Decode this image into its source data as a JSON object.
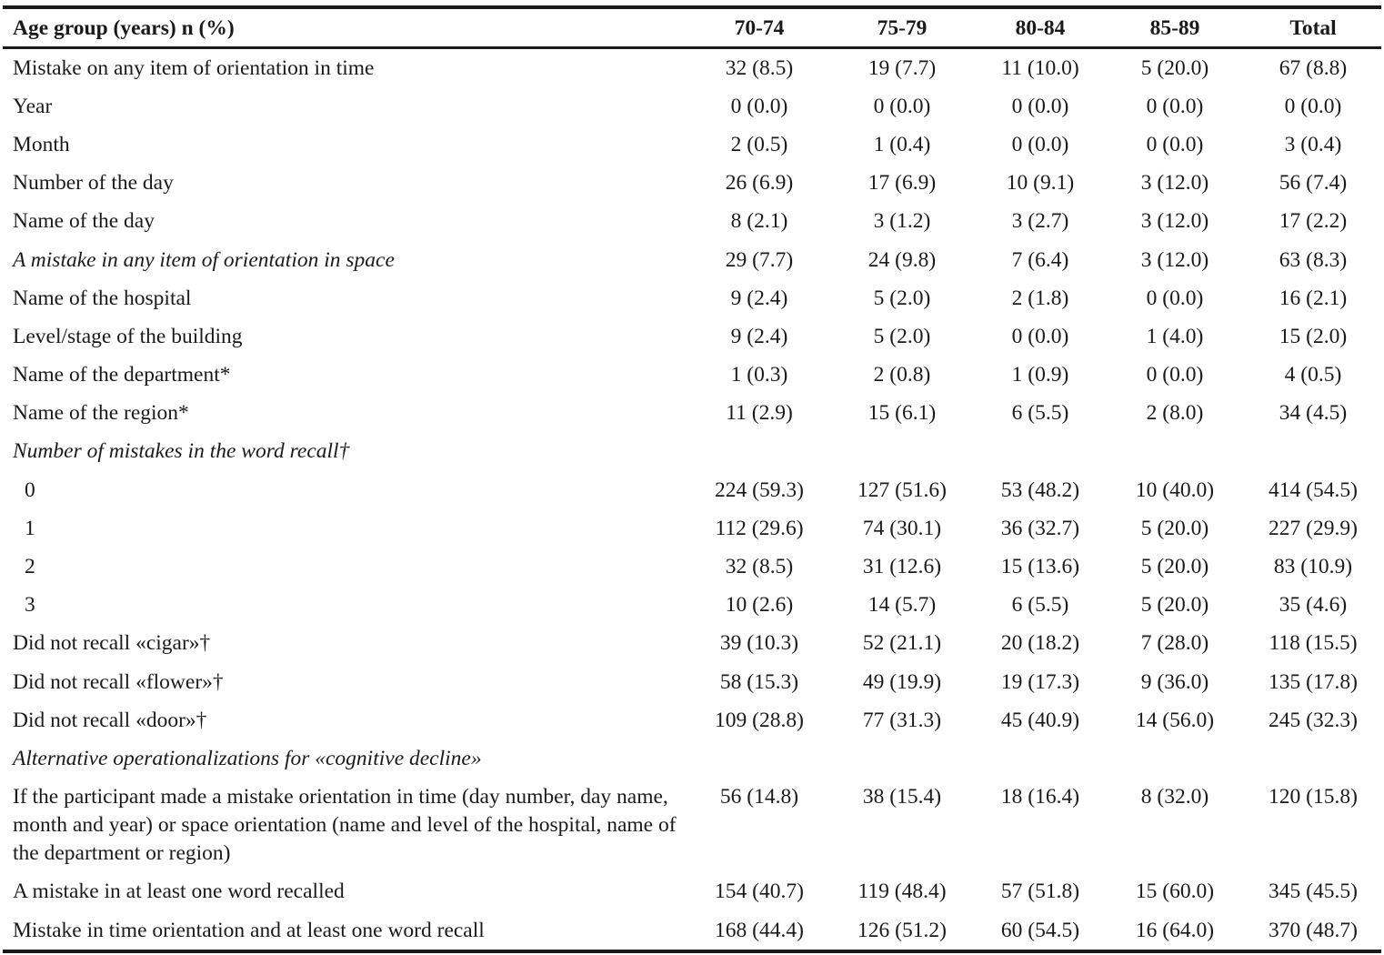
{
  "table": {
    "header": [
      "Age group (years) n (%)",
      "70-74",
      "75-79",
      "80-84",
      "85-89",
      "Total"
    ],
    "rows": [
      {
        "label": "Mistake on any item of orientation in time",
        "values": [
          "32 (8.5)",
          "19 (7.7)",
          "11 (10.0)",
          "5 (20.0)",
          "67 (8.8)"
        ]
      },
      {
        "label": "Year",
        "values": [
          "0 (0.0)",
          "0 (0.0)",
          "0 (0.0)",
          "0 (0.0)",
          "0 (0.0)"
        ]
      },
      {
        "label": "Month",
        "values": [
          "2 (0.5)",
          "1 (0.4)",
          "0 (0.0)",
          "0 (0.0)",
          "3 (0.4)"
        ]
      },
      {
        "label": "Number of the day",
        "values": [
          "26 (6.9)",
          "17 (6.9)",
          "10 (9.1)",
          "3 (12.0)",
          "56 (7.4)"
        ]
      },
      {
        "label": "Name of the day",
        "values": [
          "8 (2.1)",
          "3 (1.2)",
          "3 (2.7)",
          "3 (12.0)",
          "17 (2.2)"
        ]
      },
      {
        "label": "A mistake in any item of orientation in space",
        "values": [
          "29 (7.7)",
          "24 (9.8)",
          "7 (6.4)",
          "3 (12.0)",
          "63 (8.3)"
        ]
      },
      {
        "label": "Name of the hospital",
        "values": [
          "9 (2.4)",
          "5 (2.0)",
          "2 (1.8)",
          "0 (0.0)",
          "16 (2.1)"
        ]
      },
      {
        "label": "Level/stage of the building",
        "values": [
          "9 (2.4)",
          "5 (2.0)",
          "0 (0.0)",
          "1 (4.0)",
          "15 (2.0)"
        ]
      },
      {
        "label": "Name of the department*",
        "values": [
          "1 (0.3)",
          "2 (0.8)",
          "1 (0.9)",
          "0 (0.0)",
          "4 (0.5)"
        ]
      },
      {
        "label": "Name of the region*",
        "values": [
          "11 (2.9)",
          "15 (6.1)",
          "6 (5.5)",
          "2 (8.0)",
          "34 (4.5)"
        ]
      },
      {
        "label": "Number of mistakes in the word recall†",
        "values": [
          "",
          "",
          "",
          "",
          ""
        ]
      },
      {
        "label": "0",
        "values": [
          "224 (59.3)",
          "127 (51.6)",
          "53 (48.2)",
          "10 (40.0)",
          "414 (54.5)"
        ]
      },
      {
        "label": "1",
        "values": [
          "112 (29.6)",
          "74 (30.1)",
          "36 (32.7)",
          "5 (20.0)",
          "227 (29.9)"
        ]
      },
      {
        "label": "2",
        "values": [
          "32 (8.5)",
          "31 (12.6)",
          "15 (13.6)",
          "5 (20.0)",
          "83 (10.9)"
        ]
      },
      {
        "label": "3",
        "values": [
          "10 (2.6)",
          "14 (5.7)",
          "6 (5.5)",
          "5 (20.0)",
          "35 (4.6)"
        ]
      },
      {
        "label": "Did not recall «cigar»†",
        "values": [
          "39 (10.3)",
          "52 (21.1)",
          "20 (18.2)",
          "7 (28.0)",
          "118 (15.5)"
        ]
      },
      {
        "label": "Did not recall «flower»†",
        "values": [
          "58 (15.3)",
          "49 (19.9)",
          "19 (17.3)",
          "9 (36.0)",
          "135 (17.8)"
        ]
      },
      {
        "label": "Did not recall «door»†",
        "values": [
          "109 (28.8)",
          "77 (31.3)",
          "45 (40.9)",
          "14 (56.0)",
          "245 (32.3)"
        ]
      },
      {
        "label": "Alternative operationalizations for «cognitive decline»",
        "values": [
          "",
          "",
          "",
          "",
          ""
        ]
      },
      {
        "label": "If the participant made a mistake orientation in time (day number, day name, month and year) or space orientation (name and level of the hospital, name of the department or region)",
        "values": [
          "56 (14.8)",
          "38 (15.4)",
          "18 (16.4)",
          "8 (32.0)",
          "120 (15.8)"
        ]
      },
      {
        "label": "A mistake in at least one word recalled",
        "values": [
          "154 (40.7)",
          "119 (48.4)",
          "57 (51.8)",
          "15 (60.0)",
          "345 (45.5)"
        ]
      },
      {
        "label": "Mistake in time orientation and at least one word recall",
        "values": [
          "168 (44.4)",
          "126 (51.2)",
          "60 (54.5)",
          "16 (64.0)",
          "370 (48.7)"
        ]
      }
    ]
  }
}
